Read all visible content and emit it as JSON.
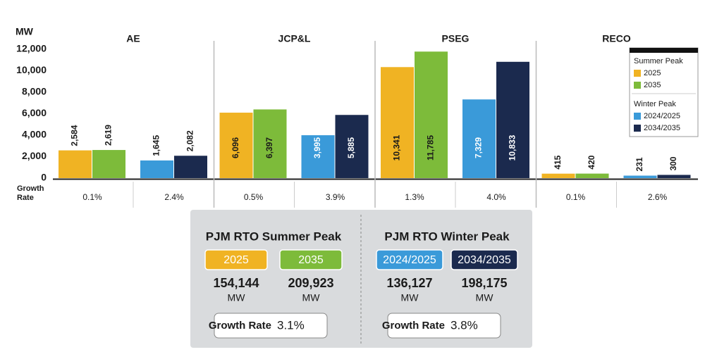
{
  "chart_data": {
    "type": "bar",
    "y_label": "MW",
    "categories": [
      "AE",
      "JCP&L",
      "PSEG",
      "RECO"
    ],
    "ylim": [
      0,
      12000
    ],
    "yticks": [
      0,
      {
        "value": 2000,
        "label": "2,000"
      },
      {
        "value": 4000,
        "label": "4,000"
      },
      {
        "value": 6000,
        "label": "6,000"
      },
      {
        "value": 8000,
        "label": "8,000"
      },
      {
        "value": 10000,
        "label": "10,000"
      },
      {
        "value": 12000,
        "label": "12,000"
      }
    ],
    "legend_groups": [
      "Summer Peak",
      "Winter Peak"
    ],
    "series": [
      {
        "name": "2025",
        "color": "#f0b323",
        "values": [
          2584,
          6096,
          10341,
          415
        ],
        "value_labels": [
          "2,584",
          "6,096",
          "10,341",
          "415"
        ]
      },
      {
        "name": "2035",
        "color": "#7dbb3a",
        "values": [
          2619,
          6397,
          11785,
          420
        ],
        "value_labels": [
          "2,619",
          "6,397",
          "11,785",
          "420"
        ]
      },
      {
        "name": "2024/2025",
        "color": "#3a9ad9",
        "values": [
          1645,
          3995,
          7329,
          231
        ],
        "value_labels": [
          "1,645",
          "3,995",
          "7,329",
          "231"
        ]
      },
      {
        "name": "2034/2035",
        "color": "#1b2a4e",
        "values": [
          2082,
          5885,
          10833,
          300
        ],
        "value_labels": [
          "2,082",
          "5,885",
          "10,833",
          "300"
        ]
      }
    ],
    "growth_label": "Growth Rate",
    "growth_rates": [
      {
        "values": [
          0.1,
          0.5,
          1.3,
          0.1
        ],
        "value_labels": [
          "0.1%",
          "0.5%",
          "1.3%",
          "0.1%"
        ]
      },
      {
        "values": [
          2.4,
          3.9,
          4.0,
          2.6
        ],
        "value_labels": [
          "2.4%",
          "3.9%",
          "4.0%",
          "2.6%"
        ]
      }
    ],
    "summary": [
      {
        "title": "PJM RTO Summer Peak",
        "values": [
          154144,
          209923
        ],
        "value_labels": [
          "154,144",
          "209,923"
        ],
        "growth": 3.1,
        "growth_text": "3.1%"
      },
      {
        "title": "PJM RTO Winter Peak",
        "values": [
          136127,
          198175
        ],
        "value_labels": [
          "136,127",
          "198,175"
        ],
        "growth": 3.8,
        "growth_text": "3.8%"
      }
    ]
  }
}
